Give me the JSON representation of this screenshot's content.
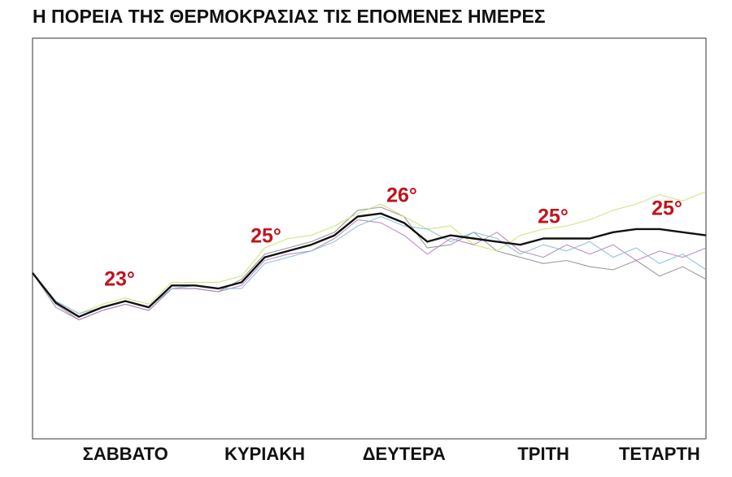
{
  "chart_data": {
    "type": "line",
    "title": "Η ΠΟΡΕΙΑ ΤΗΣ ΘΕΡΜΟΚΡΑΣΙΑΣ ΤΙΣ ΕΠΟΜΕΝΕΣ ΗΜΕΡΕΣ",
    "categories": [
      null,
      null,
      null,
      null,
      "ΣΑΒΒΑΤΟ",
      null,
      null,
      null,
      null,
      null,
      "ΚΥΡΙΑΚΗ",
      null,
      null,
      null,
      null,
      null,
      "ΔΕΥΤΕΡΑ",
      null,
      null,
      null,
      null,
      null,
      "ΤΡΙΤΗ",
      null,
      null,
      null,
      null,
      "ΤΕΤΑΡΤΗ",
      null,
      null
    ],
    "ylim": [
      18.8,
      31.6
    ],
    "series": [
      {
        "color": "#8a8a8a",
        "values": [
          24.1,
          23.0,
          22.6,
          22.9,
          23.1,
          22.9,
          23.6,
          23.6,
          23.5,
          23.9,
          24.7,
          24.9,
          25.1,
          25.4,
          26.1,
          26.2,
          25.9,
          24.9,
          25.0,
          25.4,
          24.8,
          24.6,
          24.4,
          24.5,
          24.3,
          24.2,
          24.5,
          24.0,
          24.3,
          23.9
        ]
      },
      {
        "color": "#c8e06a",
        "values": [
          24.1,
          23.2,
          22.8,
          23.1,
          23.3,
          23.1,
          23.8,
          23.8,
          23.8,
          24.0,
          24.9,
          25.2,
          25.3,
          25.6,
          26.0,
          26.3,
          25.9,
          25.5,
          25.6,
          25.0,
          24.8,
          25.3,
          25.5,
          25.6,
          25.8,
          26.1,
          26.3,
          26.6,
          26.4,
          26.7
        ]
      },
      {
        "color": "#b07ab8",
        "values": [
          24.1,
          23.1,
          22.6,
          22.9,
          23.1,
          22.9,
          23.6,
          23.6,
          23.5,
          23.7,
          24.5,
          24.7,
          24.8,
          25.2,
          25.8,
          25.7,
          25.3,
          24.7,
          25.2,
          25.0,
          25.4,
          24.8,
          24.6,
          25.0,
          24.7,
          25.0,
          24.5,
          24.8,
          24.6,
          24.9
        ]
      },
      {
        "color": "#7fb7d9",
        "values": [
          24.1,
          23.2,
          22.8,
          23.0,
          23.2,
          23.0,
          23.6,
          23.7,
          23.6,
          23.6,
          24.4,
          24.6,
          24.8,
          25.1,
          25.6,
          25.9,
          25.6,
          25.5,
          25.1,
          25.4,
          25.2,
          24.7,
          25.0,
          24.8,
          25.1,
          24.6,
          24.9,
          24.4,
          24.7,
          24.2
        ]
      },
      {
        "color": "#111111",
        "values": [
          24.1,
          23.15,
          22.7,
          23.0,
          23.2,
          23.0,
          23.7,
          23.7,
          23.6,
          23.8,
          24.6,
          24.8,
          25.0,
          25.3,
          25.9,
          26.0,
          25.7,
          25.1,
          25.3,
          25.2,
          25.1,
          25.0,
          25.2,
          25.2,
          25.2,
          25.4,
          25.5,
          25.5,
          25.4,
          25.3
        ]
      }
    ],
    "annotations": [
      "23°",
      "25°",
      "26°",
      "25°",
      "25°"
    ]
  }
}
